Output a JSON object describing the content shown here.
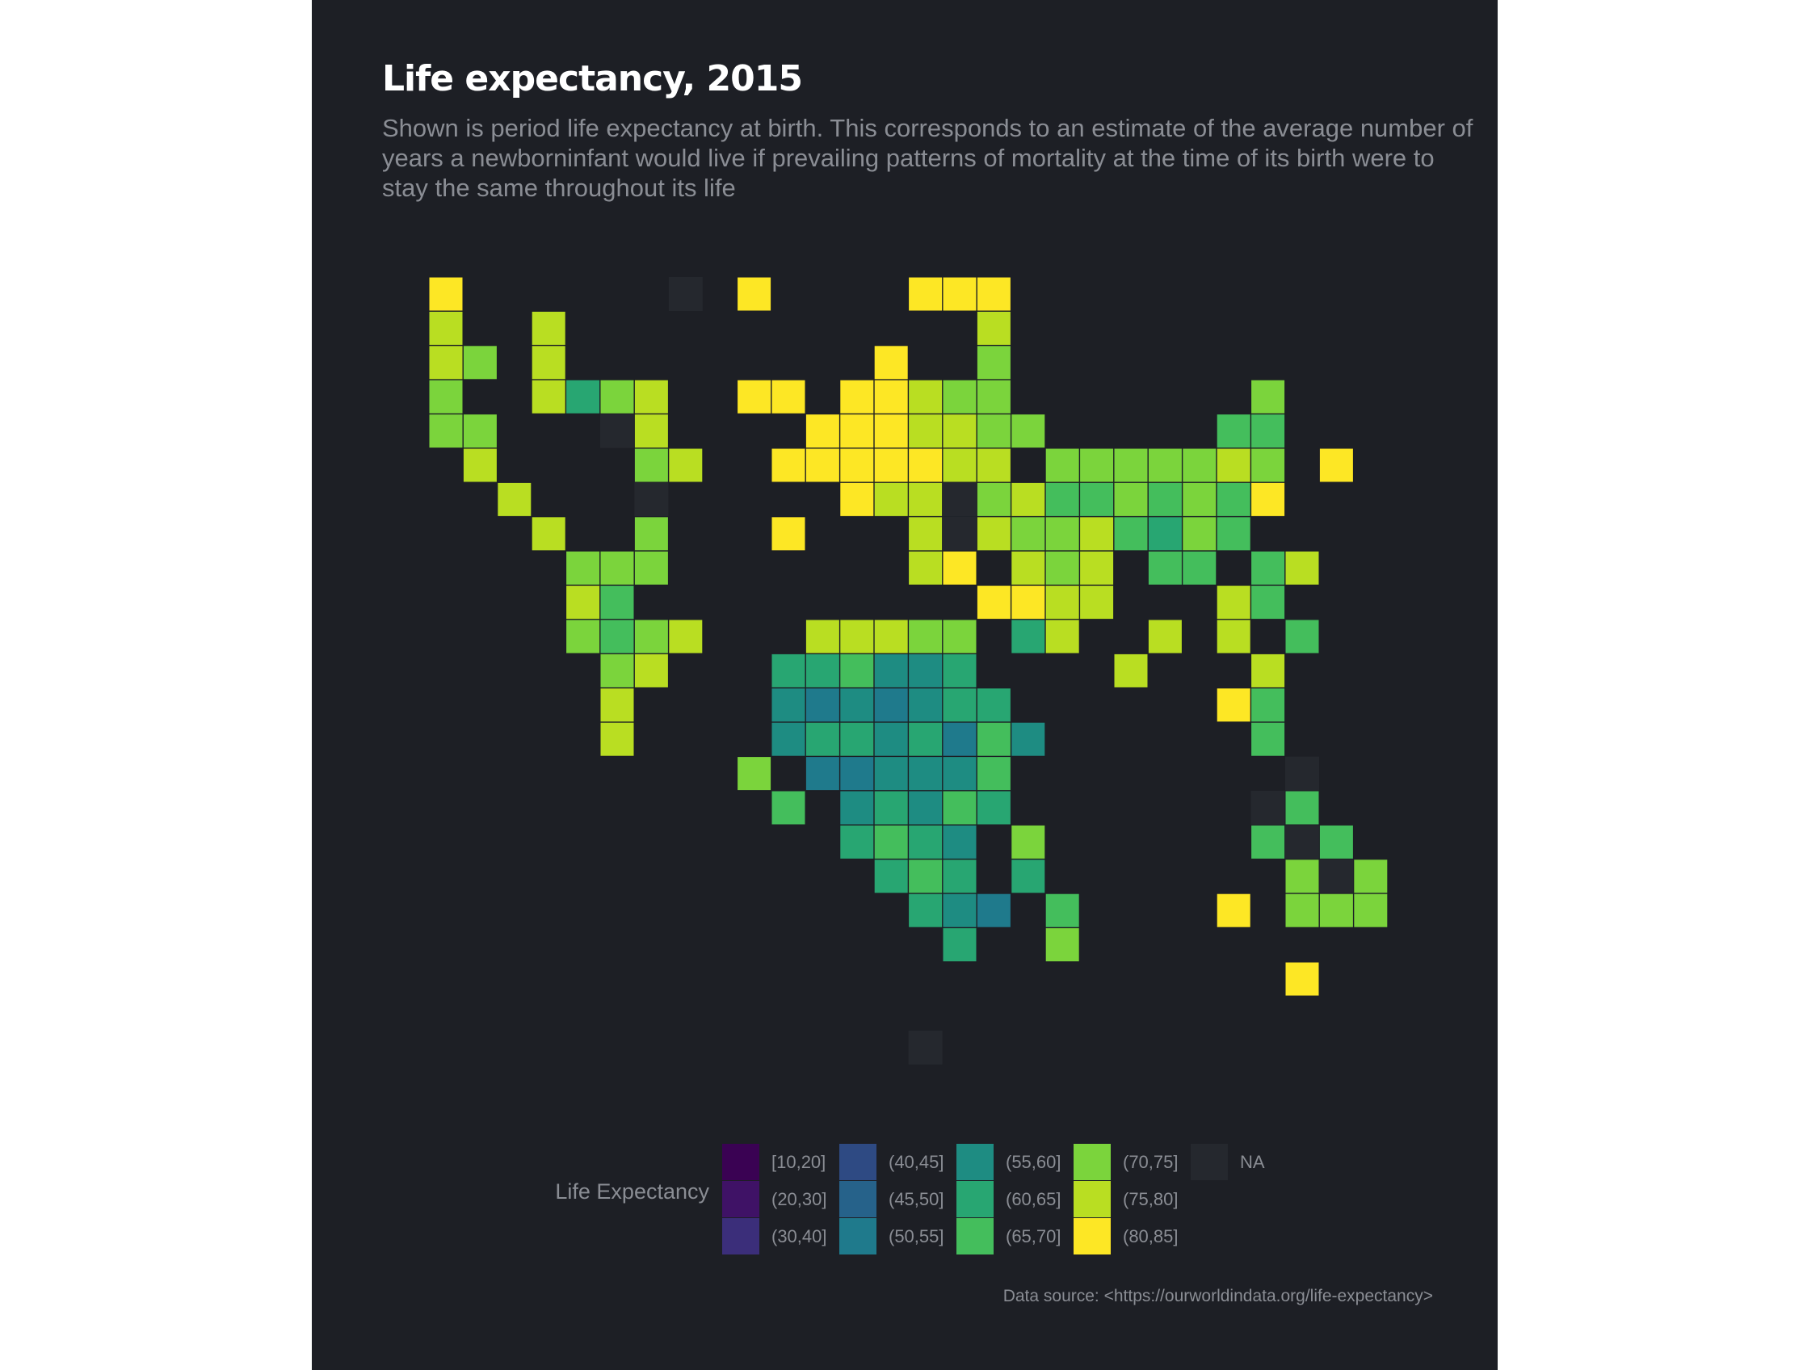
{
  "title": "Life expectancy, 2015",
  "subtitle": "Shown is period life expectancy at birth. This corresponds to an estimate of the average number of years a newborninfant would live if prevailing patterns of mortality at the time of its birth were to stay the same throughout its life",
  "caption": "Data source: <https://ourworldindata.org/life-expectancy>",
  "colors": {
    "background": "#1d1f25",
    "na": "#25282e",
    "bins": {
      "[10,20]": "#3a0253",
      "(20,30]": "#3f1266",
      "(30,40]": "#3b2e7a",
      "(40,45]": "#2e4a83",
      "(45,50]": "#26628a",
      "(50,55]": "#1f7a8c",
      "(55,60]": "#1e8c82",
      "(60,65]": "#28a672",
      "(65,70]": "#44be5c",
      "(70,75]": "#7bd43c",
      "(75,80]": "#b9de22",
      "(80,85]": "#fde725",
      "NA": "#25282e"
    }
  },
  "chart_data": {
    "type": "heatmap",
    "title": "Life expectancy, 2015",
    "legend_title": "Life Expectancy",
    "legend_position": "bottom",
    "legend_order": [
      "[10,20]",
      "(20,30]",
      "(30,40]",
      "(40,45]",
      "(45,50]",
      "(50,55]",
      "(55,60]",
      "(60,65]",
      "(65,70]",
      "(70,75]",
      "(75,80]",
      "(80,85]",
      "NA"
    ],
    "cells": [
      {
        "col": 1,
        "row": 1,
        "bin": "(80,85]"
      },
      {
        "col": 8,
        "row": 1,
        "bin": "NA"
      },
      {
        "col": 10,
        "row": 1,
        "bin": "(80,85]"
      },
      {
        "col": 15,
        "row": 1,
        "bin": "(80,85]"
      },
      {
        "col": 16,
        "row": 1,
        "bin": "(80,85]"
      },
      {
        "col": 17,
        "row": 1,
        "bin": "(80,85]"
      },
      {
        "col": 1,
        "row": 2,
        "bin": "(75,80]"
      },
      {
        "col": 4,
        "row": 2,
        "bin": "(75,80]"
      },
      {
        "col": 17,
        "row": 2,
        "bin": "(75,80]"
      },
      {
        "col": 1,
        "row": 3,
        "bin": "(75,80]"
      },
      {
        "col": 2,
        "row": 3,
        "bin": "(70,75]"
      },
      {
        "col": 4,
        "row": 3,
        "bin": "(75,80]"
      },
      {
        "col": 14,
        "row": 3,
        "bin": "(80,85]"
      },
      {
        "col": 17,
        "row": 3,
        "bin": "(70,75]"
      },
      {
        "col": 1,
        "row": 4,
        "bin": "(70,75]"
      },
      {
        "col": 4,
        "row": 4,
        "bin": "(75,80]"
      },
      {
        "col": 5,
        "row": 4,
        "bin": "(60,65]"
      },
      {
        "col": 6,
        "row": 4,
        "bin": "(70,75]"
      },
      {
        "col": 7,
        "row": 4,
        "bin": "(75,80]"
      },
      {
        "col": 10,
        "row": 4,
        "bin": "(80,85]"
      },
      {
        "col": 11,
        "row": 4,
        "bin": "(80,85]"
      },
      {
        "col": 13,
        "row": 4,
        "bin": "(80,85]"
      },
      {
        "col": 14,
        "row": 4,
        "bin": "(80,85]"
      },
      {
        "col": 15,
        "row": 4,
        "bin": "(75,80]"
      },
      {
        "col": 16,
        "row": 4,
        "bin": "(70,75]"
      },
      {
        "col": 17,
        "row": 4,
        "bin": "(70,75]"
      },
      {
        "col": 25,
        "row": 4,
        "bin": "(70,75]"
      },
      {
        "col": 1,
        "row": 5,
        "bin": "(70,75]"
      },
      {
        "col": 2,
        "row": 5,
        "bin": "(70,75]"
      },
      {
        "col": 6,
        "row": 5,
        "bin": "NA"
      },
      {
        "col": 7,
        "row": 5,
        "bin": "(75,80]"
      },
      {
        "col": 12,
        "row": 5,
        "bin": "(80,85]"
      },
      {
        "col": 13,
        "row": 5,
        "bin": "(80,85]"
      },
      {
        "col": 14,
        "row": 5,
        "bin": "(80,85]"
      },
      {
        "col": 15,
        "row": 5,
        "bin": "(75,80]"
      },
      {
        "col": 16,
        "row": 5,
        "bin": "(75,80]"
      },
      {
        "col": 17,
        "row": 5,
        "bin": "(70,75]"
      },
      {
        "col": 18,
        "row": 5,
        "bin": "(70,75]"
      },
      {
        "col": 24,
        "row": 5,
        "bin": "(65,70]"
      },
      {
        "col": 25,
        "row": 5,
        "bin": "(65,70]"
      },
      {
        "col": 2,
        "row": 6,
        "bin": "(75,80]"
      },
      {
        "col": 7,
        "row": 6,
        "bin": "(70,75]"
      },
      {
        "col": 8,
        "row": 6,
        "bin": "(75,80]"
      },
      {
        "col": 11,
        "row": 6,
        "bin": "(80,85]"
      },
      {
        "col": 12,
        "row": 6,
        "bin": "(80,85]"
      },
      {
        "col": 13,
        "row": 6,
        "bin": "(80,85]"
      },
      {
        "col": 14,
        "row": 6,
        "bin": "(80,85]"
      },
      {
        "col": 15,
        "row": 6,
        "bin": "(80,85]"
      },
      {
        "col": 16,
        "row": 6,
        "bin": "(75,80]"
      },
      {
        "col": 17,
        "row": 6,
        "bin": "(75,80]"
      },
      {
        "col": 19,
        "row": 6,
        "bin": "(70,75]"
      },
      {
        "col": 20,
        "row": 6,
        "bin": "(70,75]"
      },
      {
        "col": 21,
        "row": 6,
        "bin": "(70,75]"
      },
      {
        "col": 22,
        "row": 6,
        "bin": "(70,75]"
      },
      {
        "col": 23,
        "row": 6,
        "bin": "(70,75]"
      },
      {
        "col": 24,
        "row": 6,
        "bin": "(75,80]"
      },
      {
        "col": 25,
        "row": 6,
        "bin": "(70,75]"
      },
      {
        "col": 27,
        "row": 6,
        "bin": "(80,85]"
      },
      {
        "col": 3,
        "row": 7,
        "bin": "(75,80]"
      },
      {
        "col": 7,
        "row": 7,
        "bin": "NA"
      },
      {
        "col": 13,
        "row": 7,
        "bin": "(80,85]"
      },
      {
        "col": 14,
        "row": 7,
        "bin": "(75,80]"
      },
      {
        "col": 15,
        "row": 7,
        "bin": "(75,80]"
      },
      {
        "col": 16,
        "row": 7,
        "bin": "NA"
      },
      {
        "col": 17,
        "row": 7,
        "bin": "(70,75]"
      },
      {
        "col": 18,
        "row": 7,
        "bin": "(75,80]"
      },
      {
        "col": 19,
        "row": 7,
        "bin": "(65,70]"
      },
      {
        "col": 20,
        "row": 7,
        "bin": "(65,70]"
      },
      {
        "col": 21,
        "row": 7,
        "bin": "(70,75]"
      },
      {
        "col": 22,
        "row": 7,
        "bin": "(65,70]"
      },
      {
        "col": 23,
        "row": 7,
        "bin": "(70,75]"
      },
      {
        "col": 24,
        "row": 7,
        "bin": "(65,70]"
      },
      {
        "col": 25,
        "row": 7,
        "bin": "(80,85]"
      },
      {
        "col": 4,
        "row": 8,
        "bin": "(75,80]"
      },
      {
        "col": 7,
        "row": 8,
        "bin": "(70,75]"
      },
      {
        "col": 11,
        "row": 8,
        "bin": "(80,85]"
      },
      {
        "col": 15,
        "row": 8,
        "bin": "(75,80]"
      },
      {
        "col": 16,
        "row": 8,
        "bin": "NA"
      },
      {
        "col": 17,
        "row": 8,
        "bin": "(75,80]"
      },
      {
        "col": 18,
        "row": 8,
        "bin": "(70,75]"
      },
      {
        "col": 19,
        "row": 8,
        "bin": "(70,75]"
      },
      {
        "col": 20,
        "row": 8,
        "bin": "(75,80]"
      },
      {
        "col": 21,
        "row": 8,
        "bin": "(65,70]"
      },
      {
        "col": 22,
        "row": 8,
        "bin": "(60,65]"
      },
      {
        "col": 23,
        "row": 8,
        "bin": "(70,75]"
      },
      {
        "col": 24,
        "row": 8,
        "bin": "(65,70]"
      },
      {
        "col": 5,
        "row": 9,
        "bin": "(70,75]"
      },
      {
        "col": 6,
        "row": 9,
        "bin": "(70,75]"
      },
      {
        "col": 7,
        "row": 9,
        "bin": "(70,75]"
      },
      {
        "col": 15,
        "row": 9,
        "bin": "(75,80]"
      },
      {
        "col": 16,
        "row": 9,
        "bin": "(80,85]"
      },
      {
        "col": 18,
        "row": 9,
        "bin": "(75,80]"
      },
      {
        "col": 19,
        "row": 9,
        "bin": "(70,75]"
      },
      {
        "col": 20,
        "row": 9,
        "bin": "(75,80]"
      },
      {
        "col": 22,
        "row": 9,
        "bin": "(65,70]"
      },
      {
        "col": 23,
        "row": 9,
        "bin": "(65,70]"
      },
      {
        "col": 25,
        "row": 9,
        "bin": "(65,70]"
      },
      {
        "col": 26,
        "row": 9,
        "bin": "(75,80]"
      },
      {
        "col": 5,
        "row": 10,
        "bin": "(75,80]"
      },
      {
        "col": 6,
        "row": 10,
        "bin": "(65,70]"
      },
      {
        "col": 17,
        "row": 10,
        "bin": "(80,85]"
      },
      {
        "col": 18,
        "row": 10,
        "bin": "(80,85]"
      },
      {
        "col": 19,
        "row": 10,
        "bin": "(75,80]"
      },
      {
        "col": 20,
        "row": 10,
        "bin": "(75,80]"
      },
      {
        "col": 24,
        "row": 10,
        "bin": "(75,80]"
      },
      {
        "col": 25,
        "row": 10,
        "bin": "(65,70]"
      },
      {
        "col": 5,
        "row": 11,
        "bin": "(70,75]"
      },
      {
        "col": 6,
        "row": 11,
        "bin": "(65,70]"
      },
      {
        "col": 7,
        "row": 11,
        "bin": "(70,75]"
      },
      {
        "col": 8,
        "row": 11,
        "bin": "(75,80]"
      },
      {
        "col": 12,
        "row": 11,
        "bin": "(75,80]"
      },
      {
        "col": 13,
        "row": 11,
        "bin": "(75,80]"
      },
      {
        "col": 14,
        "row": 11,
        "bin": "(75,80]"
      },
      {
        "col": 15,
        "row": 11,
        "bin": "(70,75]"
      },
      {
        "col": 16,
        "row": 11,
        "bin": "(70,75]"
      },
      {
        "col": 18,
        "row": 11,
        "bin": "(60,65]"
      },
      {
        "col": 19,
        "row": 11,
        "bin": "(75,80]"
      },
      {
        "col": 22,
        "row": 11,
        "bin": "(75,80]"
      },
      {
        "col": 24,
        "row": 11,
        "bin": "(75,80]"
      },
      {
        "col": 26,
        "row": 11,
        "bin": "(65,70]"
      },
      {
        "col": 6,
        "row": 12,
        "bin": "(70,75]"
      },
      {
        "col": 7,
        "row": 12,
        "bin": "(75,80]"
      },
      {
        "col": 11,
        "row": 12,
        "bin": "(60,65]"
      },
      {
        "col": 12,
        "row": 12,
        "bin": "(60,65]"
      },
      {
        "col": 13,
        "row": 12,
        "bin": "(65,70]"
      },
      {
        "col": 14,
        "row": 12,
        "bin": "(55,60]"
      },
      {
        "col": 15,
        "row": 12,
        "bin": "(55,60]"
      },
      {
        "col": 16,
        "row": 12,
        "bin": "(60,65]"
      },
      {
        "col": 21,
        "row": 12,
        "bin": "(75,80]"
      },
      {
        "col": 25,
        "row": 12,
        "bin": "(75,80]"
      },
      {
        "col": 6,
        "row": 13,
        "bin": "(75,80]"
      },
      {
        "col": 11,
        "row": 13,
        "bin": "(55,60]"
      },
      {
        "col": 12,
        "row": 13,
        "bin": "(50,55]"
      },
      {
        "col": 13,
        "row": 13,
        "bin": "(55,60]"
      },
      {
        "col": 14,
        "row": 13,
        "bin": "(50,55]"
      },
      {
        "col": 15,
        "row": 13,
        "bin": "(55,60]"
      },
      {
        "col": 16,
        "row": 13,
        "bin": "(60,65]"
      },
      {
        "col": 17,
        "row": 13,
        "bin": "(60,65]"
      },
      {
        "col": 24,
        "row": 13,
        "bin": "(80,85]"
      },
      {
        "col": 25,
        "row": 13,
        "bin": "(65,70]"
      },
      {
        "col": 6,
        "row": 14,
        "bin": "(75,80]"
      },
      {
        "col": 11,
        "row": 14,
        "bin": "(55,60]"
      },
      {
        "col": 12,
        "row": 14,
        "bin": "(60,65]"
      },
      {
        "col": 13,
        "row": 14,
        "bin": "(60,65]"
      },
      {
        "col": 14,
        "row": 14,
        "bin": "(55,60]"
      },
      {
        "col": 15,
        "row": 14,
        "bin": "(60,65]"
      },
      {
        "col": 16,
        "row": 14,
        "bin": "(50,55]"
      },
      {
        "col": 17,
        "row": 14,
        "bin": "(65,70]"
      },
      {
        "col": 18,
        "row": 14,
        "bin": "(55,60]"
      },
      {
        "col": 25,
        "row": 14,
        "bin": "(65,70]"
      },
      {
        "col": 10,
        "row": 15,
        "bin": "(70,75]"
      },
      {
        "col": 12,
        "row": 15,
        "bin": "(50,55]"
      },
      {
        "col": 13,
        "row": 15,
        "bin": "(50,55]"
      },
      {
        "col": 14,
        "row": 15,
        "bin": "(55,60]"
      },
      {
        "col": 15,
        "row": 15,
        "bin": "(55,60]"
      },
      {
        "col": 16,
        "row": 15,
        "bin": "(55,60]"
      },
      {
        "col": 17,
        "row": 15,
        "bin": "(65,70]"
      },
      {
        "col": 26,
        "row": 15,
        "bin": "NA"
      },
      {
        "col": 11,
        "row": 16,
        "bin": "(65,70]"
      },
      {
        "col": 13,
        "row": 16,
        "bin": "(55,60]"
      },
      {
        "col": 14,
        "row": 16,
        "bin": "(60,65]"
      },
      {
        "col": 15,
        "row": 16,
        "bin": "(55,60]"
      },
      {
        "col": 16,
        "row": 16,
        "bin": "(65,70]"
      },
      {
        "col": 17,
        "row": 16,
        "bin": "(60,65]"
      },
      {
        "col": 25,
        "row": 16,
        "bin": "NA"
      },
      {
        "col": 26,
        "row": 16,
        "bin": "(65,70]"
      },
      {
        "col": 13,
        "row": 17,
        "bin": "(60,65]"
      },
      {
        "col": 14,
        "row": 17,
        "bin": "(65,70]"
      },
      {
        "col": 15,
        "row": 17,
        "bin": "(60,65]"
      },
      {
        "col": 16,
        "row": 17,
        "bin": "(55,60]"
      },
      {
        "col": 18,
        "row": 17,
        "bin": "(70,75]"
      },
      {
        "col": 25,
        "row": 17,
        "bin": "(65,70]"
      },
      {
        "col": 26,
        "row": 17,
        "bin": "NA"
      },
      {
        "col": 27,
        "row": 17,
        "bin": "(65,70]"
      },
      {
        "col": 14,
        "row": 18,
        "bin": "(60,65]"
      },
      {
        "col": 15,
        "row": 18,
        "bin": "(65,70]"
      },
      {
        "col": 16,
        "row": 18,
        "bin": "(60,65]"
      },
      {
        "col": 18,
        "row": 18,
        "bin": "(60,65]"
      },
      {
        "col": 26,
        "row": 18,
        "bin": "(70,75]"
      },
      {
        "col": 27,
        "row": 18,
        "bin": "NA"
      },
      {
        "col": 28,
        "row": 18,
        "bin": "(70,75]"
      },
      {
        "col": 15,
        "row": 19,
        "bin": "(60,65]"
      },
      {
        "col": 16,
        "row": 19,
        "bin": "(55,60]"
      },
      {
        "col": 17,
        "row": 19,
        "bin": "(50,55]"
      },
      {
        "col": 19,
        "row": 19,
        "bin": "(65,70]"
      },
      {
        "col": 24,
        "row": 19,
        "bin": "(80,85]"
      },
      {
        "col": 26,
        "row": 19,
        "bin": "(70,75]"
      },
      {
        "col": 27,
        "row": 19,
        "bin": "(70,75]"
      },
      {
        "col": 28,
        "row": 19,
        "bin": "(70,75]"
      },
      {
        "col": 16,
        "row": 20,
        "bin": "(60,65]"
      },
      {
        "col": 19,
        "row": 20,
        "bin": "(70,75]"
      },
      {
        "col": 26,
        "row": 21,
        "bin": "(80,85]"
      },
      {
        "col": 15,
        "row": 23,
        "bin": "NA"
      }
    ]
  }
}
